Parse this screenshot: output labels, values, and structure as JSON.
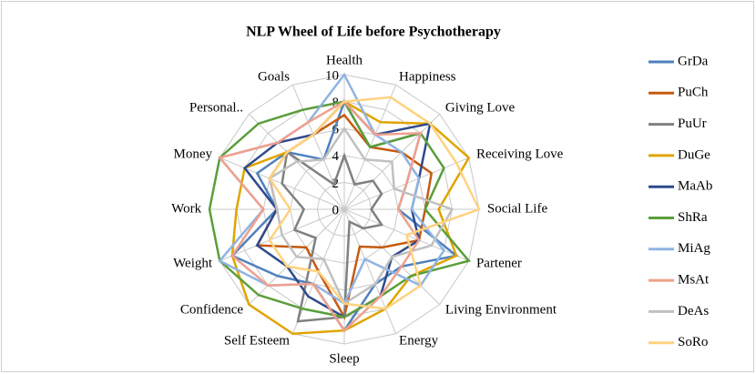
{
  "chart_data": {
    "type": "radar",
    "title": "NLP Wheel of Life before Psychotherapy",
    "categories": [
      "Health",
      "Happiness",
      "Giving Love",
      "Receiving Love",
      "Social Life",
      "Partener",
      "Living Environment",
      "Energy",
      "Sleep",
      "Self Esteem",
      "Confidence",
      "Weight",
      "Work",
      "Money",
      "Personal..",
      "Goals"
    ],
    "ylim": [
      0,
      10
    ],
    "yticks": [
      0,
      2,
      4,
      6,
      8,
      10
    ],
    "grid": true,
    "legend": "right",
    "series": [
      {
        "name": "GrDa",
        "color": "#4f81bd",
        "values": [
          8,
          5,
          8,
          5,
          4,
          9,
          6,
          6,
          9,
          6,
          7,
          9,
          5,
          7,
          6,
          4
        ]
      },
      {
        "name": "PuCh",
        "color": "#c55a11",
        "values": [
          7,
          5,
          6,
          7,
          6,
          6,
          4,
          3,
          8,
          5,
          4,
          7,
          5,
          6,
          6,
          6
        ]
      },
      {
        "name": "PuUr",
        "color": "#808080",
        "values": [
          4,
          2,
          3,
          3,
          2,
          3,
          2,
          1,
          8,
          9,
          3,
          4,
          3,
          5,
          6,
          2
        ]
      },
      {
        "name": "DuGe",
        "color": "#e0a400",
        "values": [
          8,
          7,
          9,
          10,
          7,
          9,
          7,
          8,
          9,
          10,
          10,
          9,
          8,
          8,
          6,
          6
        ]
      },
      {
        "name": "MaAb",
        "color": "#2e4a8c",
        "values": [
          8,
          6,
          9,
          6,
          5,
          6,
          5,
          7,
          8,
          7,
          6,
          7,
          5,
          8,
          7,
          6
        ]
      },
      {
        "name": "ShRa",
        "color": "#5a9e3a",
        "values": [
          8,
          5,
          8,
          8,
          6,
          10,
          7,
          7,
          8,
          8,
          9,
          10,
          10,
          10,
          9,
          8
        ]
      },
      {
        "name": "MiAg",
        "color": "#8fb4e3",
        "values": [
          10,
          6,
          6,
          6,
          5,
          8,
          8,
          4,
          7,
          6,
          8,
          10,
          6,
          10,
          7,
          7
        ]
      },
      {
        "name": "MsAt",
        "color": "#f0a08c",
        "values": [
          8,
          6,
          8,
          5,
          4,
          6,
          6,
          7,
          9,
          6,
          8,
          9,
          6,
          10,
          7,
          7
        ]
      },
      {
        "name": "DeAs",
        "color": "#c0c0c0",
        "values": [
          6,
          4,
          5,
          4,
          8,
          7,
          5,
          6,
          7,
          4,
          5,
          5,
          5,
          6,
          5,
          4
        ]
      },
      {
        "name": "SoRo",
        "color": "#ffd27f",
        "values": [
          8,
          9,
          9,
          9,
          10,
          5,
          8,
          8,
          7,
          5,
          6,
          6,
          4,
          6,
          6,
          6
        ]
      }
    ]
  }
}
